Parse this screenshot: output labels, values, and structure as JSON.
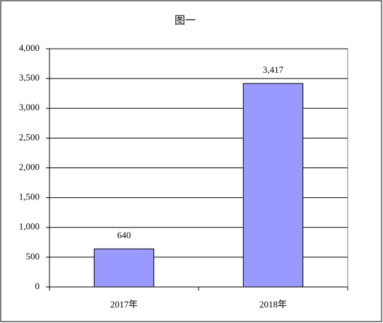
{
  "chart_data": {
    "type": "bar",
    "title": "图一",
    "categories": [
      "2017年",
      "2018年"
    ],
    "values": [
      640,
      3417
    ],
    "value_labels": [
      "640",
      "3,417"
    ],
    "color": "#9999ff",
    "ylim": [
      0,
      4000
    ],
    "yticks": [
      0,
      500,
      {
        "value": 1000,
        "label": "1,000"
      },
      {
        "value": 1500,
        "label": "1,500"
      },
      {
        "value": 2000,
        "label": "2,000"
      },
      {
        "value": 2500,
        "label": "2,500"
      },
      {
        "value": 3000,
        "label": "3,000"
      },
      {
        "value": 3500,
        "label": "3,500"
      },
      {
        "value": 4000,
        "label": "4,000"
      }
    ],
    "grid": true
  }
}
